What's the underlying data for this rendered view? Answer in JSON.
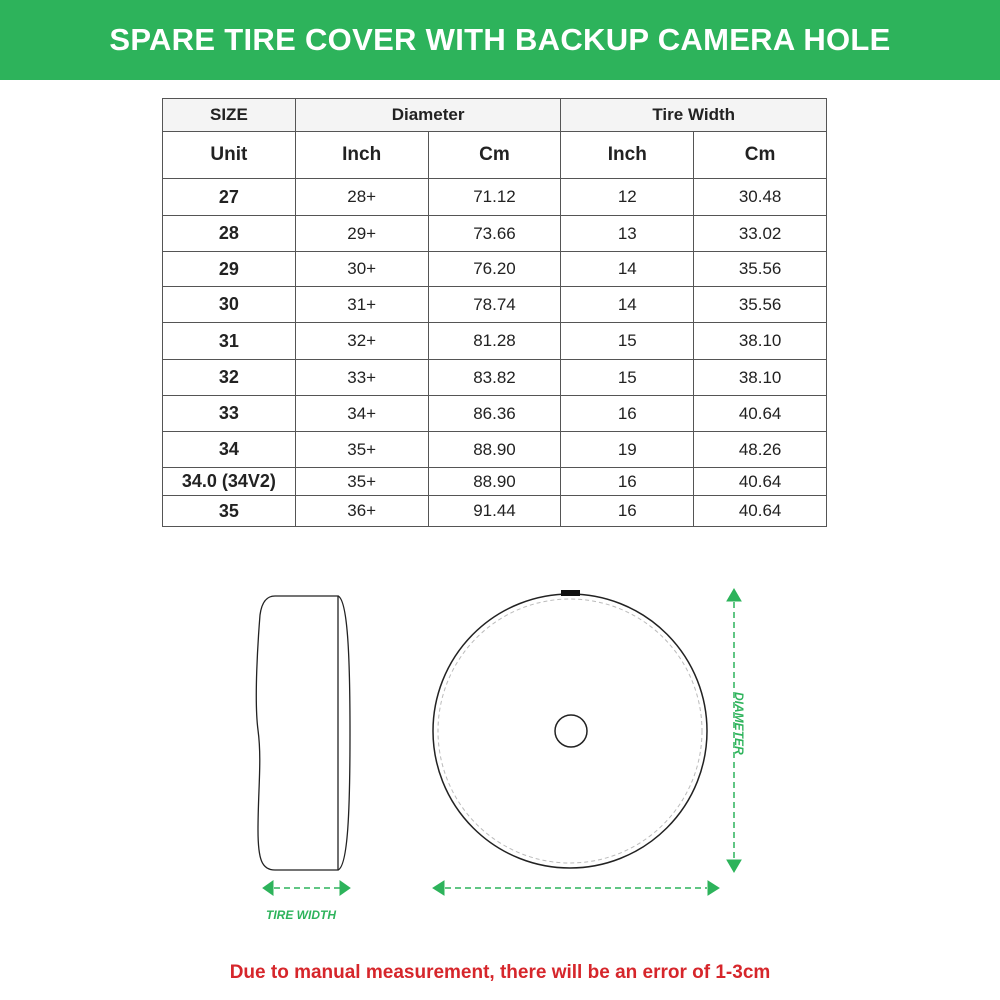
{
  "banner": {
    "title": "SPARE TIRE COVER WITH BACKUP CAMERA HOLE",
    "color": "#2db35b"
  },
  "table": {
    "group_headers": {
      "size": "SIZE",
      "diameter": "Diameter",
      "tire_width": "Tire Width"
    },
    "unit_headers": [
      "Unit",
      "Inch",
      "Cm",
      "Inch",
      "Cm"
    ],
    "rows": [
      [
        "27",
        "28+",
        "71.12",
        "12",
        "30.48"
      ],
      [
        "28",
        "29+",
        "73.66",
        "13",
        "33.02"
      ],
      [
        "29",
        "30+",
        "76.20",
        "14",
        "35.56"
      ],
      [
        "30",
        "31+",
        "78.74",
        "14",
        "35.56"
      ],
      [
        "31",
        "32+",
        "81.28",
        "15",
        "38.10"
      ],
      [
        "32",
        "33+",
        "83.82",
        "15",
        "38.10"
      ],
      [
        "33",
        "34+",
        "86.36",
        "16",
        "40.64"
      ],
      [
        "34",
        "35+",
        "88.90",
        "19",
        "48.26"
      ],
      [
        "34.0 (34V2)",
        "35+",
        "88.90",
        "16",
        "40.64"
      ],
      [
        "35",
        "36+",
        "91.44",
        "16",
        "40.64"
      ]
    ]
  },
  "diagram": {
    "tire_width_label": "TIRE WIDTH",
    "diameter_label": "DIAMETER",
    "arrow_color": "#2db35b"
  },
  "note": {
    "text": "Due to manual measurement, there will be an error of 1-3cm",
    "color": "#d6262b"
  }
}
